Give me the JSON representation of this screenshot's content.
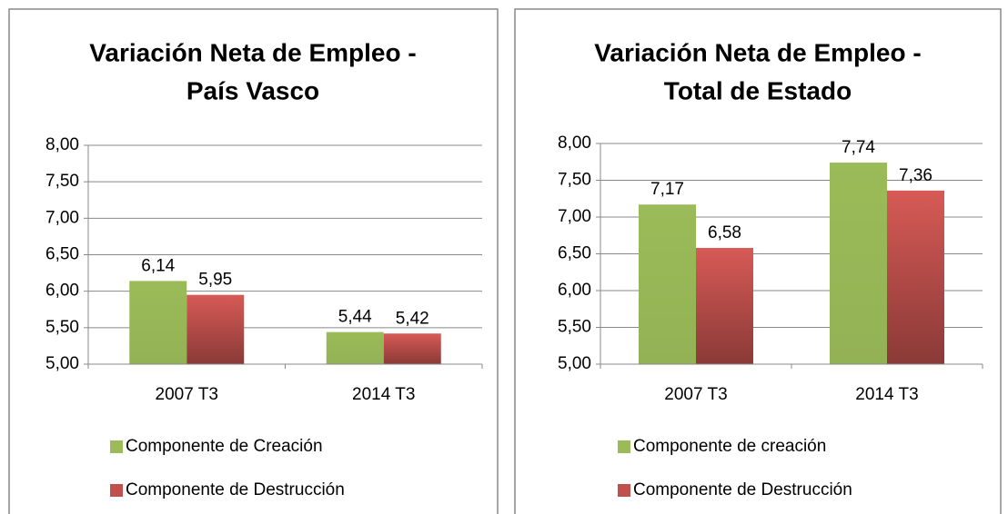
{
  "chart_data": [
    {
      "type": "bar",
      "title": [
        "Variación Neta de Empleo -",
        "País Vasco"
      ],
      "categories": [
        "2007 T3",
        "2014 T3"
      ],
      "series": [
        {
          "name": "Componente de Creación",
          "color": "#9bbb59",
          "values": [
            6.14,
            5.44
          ],
          "value_labels": [
            "6,14",
            "5,44"
          ]
        },
        {
          "name": "Componente de Destrucción",
          "color": "#c0504d",
          "values": [
            5.95,
            5.42
          ],
          "value_labels": [
            "5,95",
            "5,42"
          ]
        }
      ],
      "ylim": [
        5,
        8
      ],
      "yticks": [
        {
          "value": 5,
          "label": "5,00"
        },
        {
          "value": 5.5,
          "label": "5,50"
        },
        {
          "value": 6,
          "label": "6,00"
        },
        {
          "value": 6.5,
          "label": "6,50"
        },
        {
          "value": 7,
          "label": "7,00"
        },
        {
          "value": 7.5,
          "label": "7,50"
        },
        {
          "value": 8,
          "label": "8,00"
        }
      ],
      "grid": true,
      "legend": "bottom"
    },
    {
      "type": "bar",
      "title": [
        "Variación Neta de Empleo -",
        "Total de Estado"
      ],
      "categories": [
        "2007 T3",
        "2014 T3"
      ],
      "series": [
        {
          "name": "Componente de creación",
          "color": "#9bbb59",
          "values": [
            7.17,
            7.74
          ],
          "value_labels": [
            "7,17",
            "7,74"
          ]
        },
        {
          "name": "Componente de Destrucción",
          "color": "#c0504d",
          "values": [
            6.58,
            7.36
          ],
          "value_labels": [
            "6,58",
            "7,36"
          ]
        }
      ],
      "ylim": [
        5,
        8
      ],
      "yticks": [
        {
          "value": 5,
          "label": "5,00"
        },
        {
          "value": 5.5,
          "label": "5,50"
        },
        {
          "value": 6,
          "label": "6,00"
        },
        {
          "value": 6.5,
          "label": "6,50"
        },
        {
          "value": 7,
          "label": "7,00"
        },
        {
          "value": 7.5,
          "label": "7,50"
        },
        {
          "value": 8,
          "label": "8,00"
        }
      ],
      "grid": true,
      "legend": "bottom"
    }
  ]
}
